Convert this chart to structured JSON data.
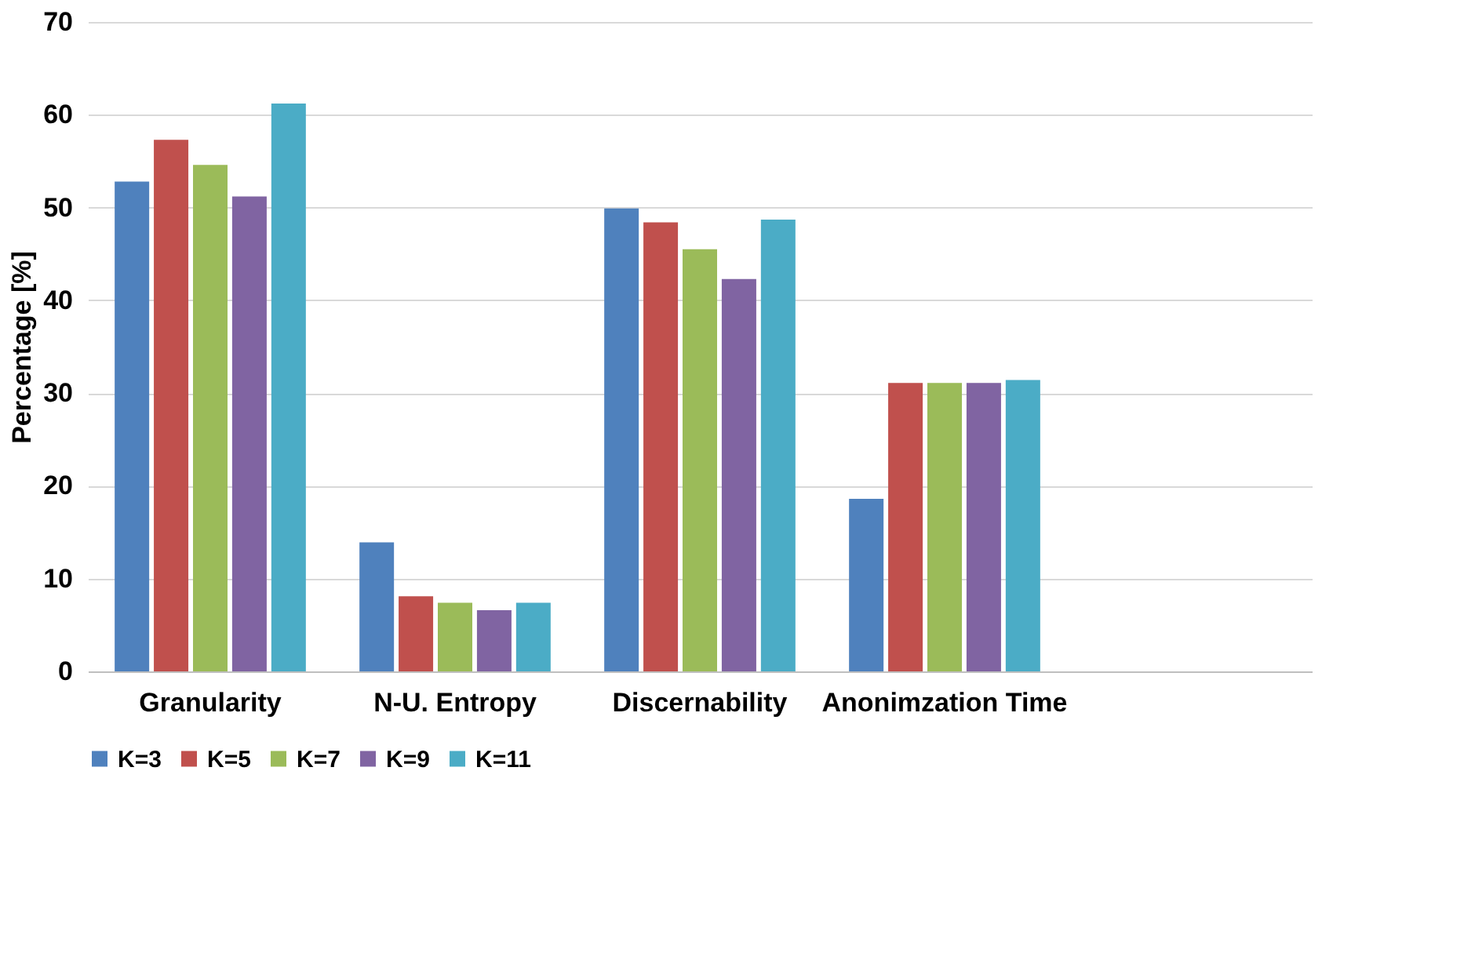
{
  "chart_data": {
    "type": "bar",
    "ylabel": "Percentage [%]",
    "categories": [
      "Granularity",
      "N-U. Entropy",
      "Discernability",
      "Anonimzation Time",
      null
    ],
    "series": [
      {
        "name": "K=3",
        "color": "#4f81bd",
        "values": [
          52.8,
          13.9,
          49.9,
          18.6,
          null
        ]
      },
      {
        "name": "K=5",
        "color": "#c0504d",
        "values": [
          57.3,
          8.1,
          48.4,
          31.1,
          null
        ]
      },
      {
        "name": "K=7",
        "color": "#9bbb59",
        "values": [
          54.6,
          7.4,
          45.5,
          31.1,
          null
        ]
      },
      {
        "name": "K=9",
        "color": "#8064a2",
        "values": [
          51.2,
          6.6,
          42.3,
          31.1,
          null
        ]
      },
      {
        "name": "K=11",
        "color": "#4bacc6",
        "values": [
          61.2,
          7.4,
          48.7,
          31.4,
          null
        ]
      }
    ],
    "ylim": [
      0,
      70
    ],
    "yticks": [
      0,
      10,
      20,
      30,
      40,
      50,
      60,
      70
    ],
    "grid": "y",
    "legend": "bottom"
  }
}
